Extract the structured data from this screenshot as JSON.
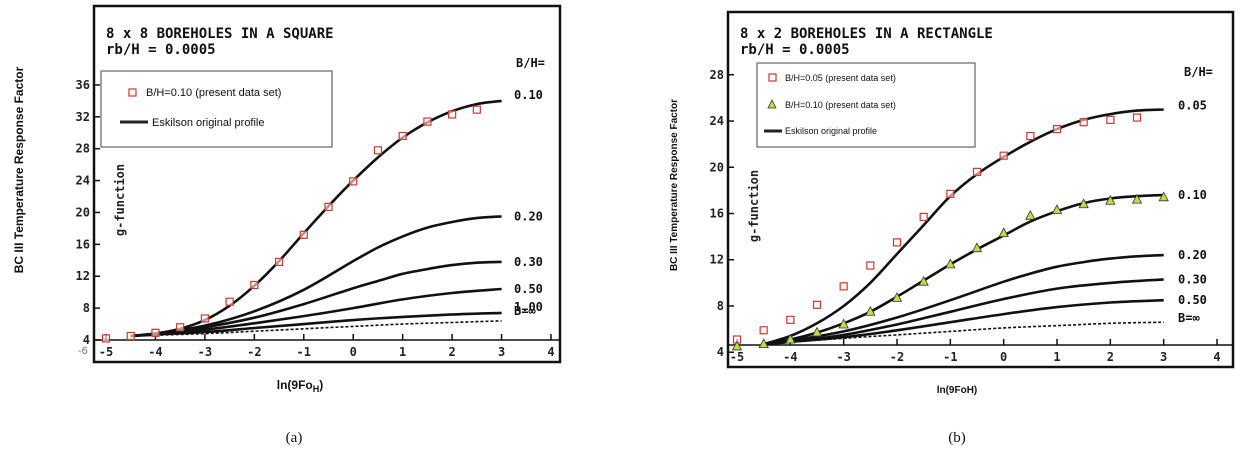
{
  "figure": {
    "panels": [
      {
        "id": "a",
        "caption": "(a)",
        "chart_title_line1": "8 x 8 BOREHOLES IN A SQUARE",
        "chart_title_line2": "rb/H = 0.0005",
        "ylabel": "BC III Temperature Response Factor",
        "ylabel_inner": "g-function",
        "xlabel": "ln(9Fo",
        "xlabel_sub": "H",
        "xlabel_end": ")",
        "bh_header": "B/H=",
        "legend": {
          "placement": "top-left",
          "entries": [
            {
              "label": "B/H=0.10 (present data set)",
              "marker": "square",
              "color": "#d9342b"
            },
            {
              "label": "Eskilson original profile",
              "marker": "line",
              "color": "#222222"
            }
          ]
        },
        "curve_labels": [
          "0.10",
          "0.20",
          "0.30",
          "0.50",
          "1.00",
          "B=∞"
        ]
      },
      {
        "id": "b",
        "caption": "(b)",
        "chart_title_line1": "8 x 2 BOREHOLES IN A RECTANGLE",
        "chart_title_line2": "rb/H = 0.0005",
        "ylabel": "BC III Temperature Response Factor",
        "ylabel_inner": "g-function",
        "xlabel": "ln(9FoH)",
        "bh_header": "B/H=",
        "legend": {
          "placement": "top-left",
          "entries": [
            {
              "label": "B/H=0.05 (present data set)",
              "marker": "square",
              "color": "#d9342b"
            },
            {
              "label": "B/H=0.10 (present data set)",
              "marker": "triangle",
              "color": "#b8e04a"
            },
            {
              "label": "Eskilson original profile",
              "marker": "line",
              "color": "#222222"
            }
          ]
        },
        "curve_labels": [
          "0.05",
          "0.10",
          "0.20",
          "0.30",
          "0.50",
          "B=∞"
        ]
      }
    ]
  },
  "chart_data": [
    {
      "type": "line",
      "panel": "a",
      "xlim": [
        -5,
        4
      ],
      "ylim": [
        4,
        38
      ],
      "x_ticks": [
        -5,
        -4,
        -3,
        -2,
        -1,
        0,
        1,
        2,
        3,
        4
      ],
      "y_ticks": [
        4,
        8,
        12,
        16,
        20,
        24,
        28,
        32,
        36
      ],
      "extra_tick_label": "-6",
      "grid": false,
      "curves": [
        {
          "name": "0.10",
          "x": [
            -4.5,
            -4,
            -3.5,
            -3,
            -2.5,
            -2,
            -1.5,
            -1,
            -0.5,
            0,
            0.5,
            1,
            1.5,
            2,
            2.5,
            3
          ],
          "y": [
            4.5,
            4.8,
            5.4,
            6.5,
            8.3,
            10.8,
            13.9,
            17.4,
            20.8,
            24.0,
            26.9,
            29.4,
            31.3,
            32.7,
            33.6,
            34.0
          ]
        },
        {
          "name": "0.20",
          "x": [
            -4.5,
            -4,
            -3,
            -2,
            -1,
            0,
            0.5,
            1,
            1.5,
            2,
            2.5,
            3
          ],
          "y": [
            4.5,
            4.8,
            5.8,
            7.6,
            10.3,
            13.9,
            15.6,
            17.0,
            18.1,
            18.8,
            19.3,
            19.5
          ]
        },
        {
          "name": "0.30",
          "x": [
            -4.5,
            -4,
            -3,
            -2,
            -1,
            0,
            0.5,
            1,
            1.5,
            2,
            2.5,
            3
          ],
          "y": [
            4.5,
            4.8,
            5.6,
            6.8,
            8.5,
            10.5,
            11.4,
            12.3,
            12.9,
            13.4,
            13.7,
            13.8
          ]
        },
        {
          "name": "0.50",
          "x": [
            -4.5,
            -4,
            -3,
            -2,
            -1,
            0,
            1,
            2,
            3
          ],
          "y": [
            4.5,
            4.7,
            5.3,
            6.1,
            7.0,
            8.0,
            9.1,
            9.9,
            10.4
          ]
        },
        {
          "name": "1.00",
          "x": [
            -4.5,
            -4,
            -3,
            -2,
            -1,
            0,
            1,
            2,
            3
          ],
          "y": [
            4.5,
            4.7,
            5.0,
            5.5,
            6.0,
            6.5,
            6.9,
            7.2,
            7.4
          ]
        },
        {
          "name": "B=∞",
          "x": [
            -4.5,
            -3,
            -2,
            -1,
            0,
            1,
            2,
            3
          ],
          "y": [
            4.5,
            4.8,
            5.1,
            5.4,
            5.7,
            6.0,
            6.2,
            6.4
          ],
          "dashed": true
        }
      ],
      "markers": [
        {
          "name": "B/H=0.10 (present data set)",
          "symbol": "square",
          "color": "#d9342b",
          "x": [
            -5,
            -4.5,
            -4,
            -3.5,
            -3,
            -2.5,
            -2,
            -1.5,
            -1,
            -0.5,
            0,
            0.5,
            1,
            1.5,
            2,
            2.5
          ],
          "y": [
            4.2,
            4.5,
            4.9,
            5.6,
            6.7,
            8.8,
            10.9,
            13.8,
            17.2,
            20.7,
            23.9,
            27.8,
            29.6,
            31.4,
            32.3,
            32.9
          ]
        }
      ]
    },
    {
      "type": "line",
      "panel": "b",
      "xlim": [
        -5,
        4
      ],
      "ylim": [
        3.5,
        28.5
      ],
      "x_ticks": [
        -5,
        -4,
        -3,
        -2,
        -1,
        0,
        1,
        2,
        3,
        4
      ],
      "y_ticks": [
        4,
        8,
        12,
        16,
        20,
        24,
        28
      ],
      "grid": false,
      "curves": [
        {
          "name": "0.05",
          "x": [
            -4.5,
            -4,
            -3.5,
            -3,
            -2.5,
            -2,
            -1.5,
            -1,
            -0.5,
            0,
            0.5,
            1,
            1.5,
            2,
            2.5,
            3
          ],
          "y": [
            4.7,
            5.4,
            6.5,
            8.0,
            10.0,
            12.5,
            15.0,
            17.5,
            19.4,
            20.9,
            22.2,
            23.3,
            24.1,
            24.6,
            24.9,
            25.0
          ]
        },
        {
          "name": "0.10",
          "x": [
            -4.5,
            -4,
            -3.5,
            -3,
            -2.5,
            -2,
            -1.5,
            -1,
            -0.5,
            0,
            0.5,
            1,
            1.5,
            2,
            2.5,
            3
          ],
          "y": [
            4.7,
            5.1,
            5.7,
            6.5,
            7.5,
            8.8,
            10.2,
            11.6,
            12.9,
            14.1,
            15.3,
            16.2,
            16.9,
            17.3,
            17.5,
            17.6
          ]
        },
        {
          "name": "0.20",
          "x": [
            -4.5,
            -4,
            -3,
            -2,
            -1,
            0,
            0.5,
            1,
            1.5,
            2,
            2.5,
            3
          ],
          "y": [
            4.7,
            5.0,
            5.8,
            7.0,
            8.5,
            10.1,
            10.8,
            11.4,
            11.8,
            12.1,
            12.3,
            12.4
          ]
        },
        {
          "name": "0.30",
          "x": [
            -4.5,
            -4,
            -3,
            -2,
            -1,
            0,
            1,
            2,
            3
          ],
          "y": [
            4.7,
            4.9,
            5.5,
            6.4,
            7.5,
            8.6,
            9.5,
            10.0,
            10.3
          ]
        },
        {
          "name": "0.50",
          "x": [
            -4.5,
            -4,
            -3,
            -2,
            -1,
            0,
            1,
            2,
            3
          ],
          "y": [
            4.7,
            4.9,
            5.3,
            5.9,
            6.6,
            7.3,
            7.9,
            8.3,
            8.5
          ]
        },
        {
          "name": "B=∞",
          "x": [
            -4.5,
            -3,
            -2,
            -1,
            0,
            1,
            2,
            3
          ],
          "y": [
            4.7,
            5.2,
            5.5,
            5.8,
            6.1,
            6.3,
            6.5,
            6.6
          ],
          "dashed": true
        }
      ],
      "markers": [
        {
          "name": "B/H=0.05 (present data set)",
          "symbol": "square",
          "color": "#d9342b",
          "x": [
            -5,
            -4.5,
            -4,
            -3.5,
            -3,
            -2.5,
            -2,
            -1.5,
            -1,
            -0.5,
            0,
            0.5,
            1,
            1.5,
            2,
            2.5
          ],
          "y": [
            5.1,
            5.9,
            6.8,
            8.1,
            9.7,
            11.5,
            13.5,
            15.7,
            17.7,
            19.6,
            21.0,
            22.7,
            23.3,
            23.9,
            24.1,
            24.3
          ]
        },
        {
          "name": "B/H=0.10 (present data set)",
          "symbol": "triangle",
          "color": "#b8e04a",
          "x": [
            -5,
            -4.5,
            -4,
            -3.5,
            -3,
            -2.5,
            -2,
            -1.5,
            -1,
            -0.5,
            0,
            0.5,
            1,
            1.5,
            2,
            2.5,
            3
          ],
          "y": [
            4.5,
            4.7,
            5.1,
            5.7,
            6.4,
            7.5,
            8.7,
            10.1,
            11.6,
            13.0,
            14.3,
            15.8,
            16.3,
            16.8,
            17.1,
            17.2,
            17.4
          ]
        }
      ]
    }
  ]
}
